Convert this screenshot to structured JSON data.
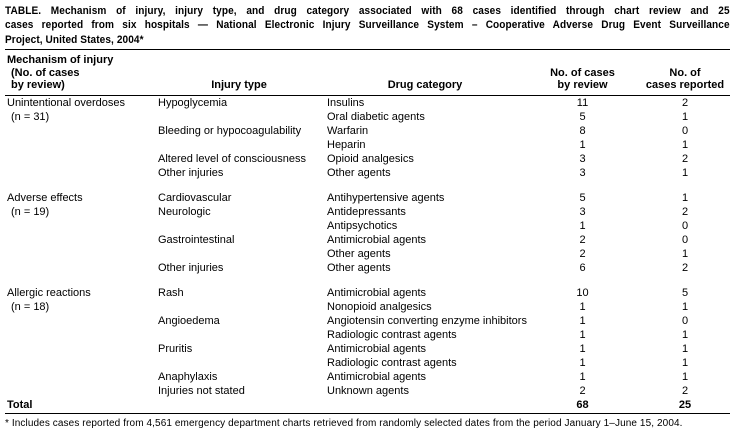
{
  "title_lines": [
    "TABLE. Mechanism of injury, injury type, and drug category associated with 68 cases identified through chart review and 25",
    "cases reported from six hospitals — National Electronic Injury Surveillance System – Cooperative Adverse Drug Event Surveillance",
    "Project, United States, 2004*"
  ],
  "table": {
    "header": {
      "mechanism_lines": [
        "Mechanism of injury",
        "(No. of cases",
        "by review)"
      ],
      "injury": "Injury type",
      "drug": "Drug category",
      "review_lines": [
        "No. of cases",
        "by review"
      ],
      "reported_lines": [
        "No. of",
        "cases reported"
      ]
    },
    "sections": [
      {
        "mechanism": "Unintentional overdoses",
        "n_label": "(n = 31)",
        "rows": [
          {
            "injury": "Hypoglycemia",
            "drug": "Insulins",
            "review": "11",
            "reported": "2"
          },
          {
            "injury": "",
            "drug": "Oral diabetic agents",
            "review": "5",
            "reported": "1"
          },
          {
            "injury": "Bleeding or hypocoagulability",
            "drug": "Warfarin",
            "review": "8",
            "reported": "0"
          },
          {
            "injury": "",
            "drug": "Heparin",
            "review": "1",
            "reported": "1"
          },
          {
            "injury": "Altered level of consciousness",
            "drug": "Opioid analgesics",
            "review": "3",
            "reported": "2"
          },
          {
            "injury": "Other injuries",
            "drug": "Other agents",
            "review": "3",
            "reported": "1"
          }
        ]
      },
      {
        "mechanism": "Adverse effects",
        "n_label": "(n = 19)",
        "rows": [
          {
            "injury": "Cardiovascular",
            "drug": "Antihypertensive agents",
            "review": "5",
            "reported": "1"
          },
          {
            "injury": "Neurologic",
            "drug": "Antidepressants",
            "review": "3",
            "reported": "2"
          },
          {
            "injury": "",
            "drug": "Antipsychotics",
            "review": "1",
            "reported": "0"
          },
          {
            "injury": "Gastrointestinal",
            "drug": "Antimicrobial agents",
            "review": "2",
            "reported": "0"
          },
          {
            "injury": "",
            "drug": "Other agents",
            "review": "2",
            "reported": "1"
          },
          {
            "injury": "Other injuries",
            "drug": "Other agents",
            "review": "6",
            "reported": "2"
          }
        ]
      },
      {
        "mechanism": "Allergic reactions",
        "n_label": "(n = 18)",
        "rows": [
          {
            "injury": "Rash",
            "drug": "Antimicrobial agents",
            "review": "10",
            "reported": "5"
          },
          {
            "injury": "",
            "drug": "Nonopioid analgesics",
            "review": "1",
            "reported": "1"
          },
          {
            "injury": "Angioedema",
            "drug": "Angiotensin converting enzyme inhibitors",
            "review": "1",
            "reported": "0"
          },
          {
            "injury": "",
            "drug": "Radiologic contrast agents",
            "review": "1",
            "reported": "1"
          },
          {
            "injury": "Pruritis",
            "drug": "Antimicrobial agents",
            "review": "1",
            "reported": "1"
          },
          {
            "injury": "",
            "drug": "Radiologic contrast agents",
            "review": "1",
            "reported": "1"
          },
          {
            "injury": "Anaphylaxis",
            "drug": "Antimicrobial agents",
            "review": "1",
            "reported": "1"
          },
          {
            "injury": "Injuries not stated",
            "drug": "Unknown agents",
            "review": "2",
            "reported": "2"
          }
        ]
      }
    ],
    "total": {
      "label": "Total",
      "review": "68",
      "reported": "25"
    }
  },
  "footnote": "* Includes cases reported from 4,561 emergency department charts retrieved from randomly selected dates from the period January 1–June 15, 2004.",
  "colors": {
    "text": "#000000",
    "background": "#ffffff",
    "rule": "#000000"
  }
}
